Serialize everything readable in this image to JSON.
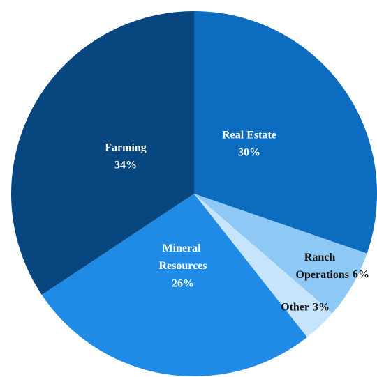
{
  "chart_data": {
    "type": "pie",
    "categories": [
      "Real Estate",
      "Ranch Operations",
      "Other",
      "Mineral Resources",
      "Farming"
    ],
    "values": [
      30,
      6,
      3,
      26,
      34
    ],
    "value_labels": [
      "30%",
      "6%",
      "3%",
      "26%",
      "34%"
    ],
    "colors": [
      "#0b6cc0",
      "#8ec9f6",
      "#c6e4fb",
      "#1f8be6",
      "#084680"
    ]
  }
}
